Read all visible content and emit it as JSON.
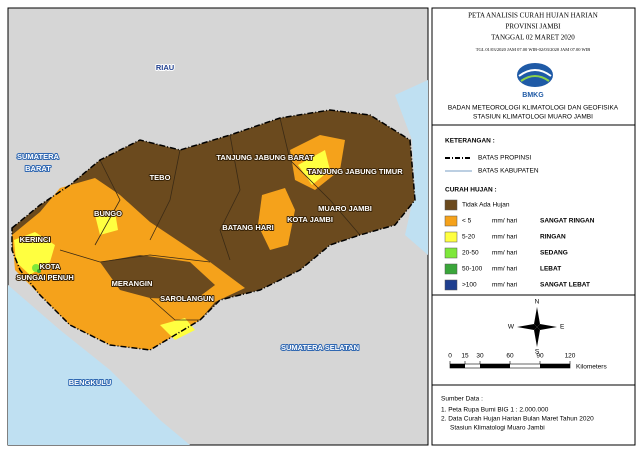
{
  "map": {
    "title": [
      "PETA ANALISIS CURAH HUJAN HARIAN",
      "PROVINSI JAMBI",
      "TANGGAL 02 MARET 2020",
      "TGL 01/03/2020 JAM 07.00 WIB-02/03/2020 JAM 07.00 WIB"
    ],
    "agency": "BMKG",
    "agency_lines": [
      "BADAN METEOROLOGI KLIMATOLOGI DAN GEOFISIKA",
      "STASIUN KLIMATOLOGI MUARO JAMBI"
    ],
    "legend": {
      "heading": "KETERANGAN :",
      "boundaries": [
        "BATAS PROPINSI",
        "BATAS KABUPATEN"
      ],
      "rain_heading": "CURAH HUJAN :",
      "classes": [
        {
          "range": "Tidak Ada Hujan",
          "color": "#6b4a1e"
        },
        {
          "range": "< 5",
          "unit": "mm/ hari",
          "category": "SANGAT RINGAN",
          "color": "#f5a21b"
        },
        {
          "range": "5-20",
          "unit": "mm/ hari",
          "category": "RINGAN",
          "color": "#ffff40"
        },
        {
          "range": "20-50",
          "unit": "mm/ hari",
          "category": "SEDANG",
          "color": "#7ee83a"
        },
        {
          "range": "50-100",
          "unit": "mm/ hari",
          "category": "LEBAT",
          "color": "#3aa63a"
        },
        {
          "range": ">100",
          "unit": "mm/ hari",
          "category": "SANGAT LEBAT",
          "color": "#1f3f8f"
        }
      ]
    },
    "compass": [
      "N",
      "S",
      "E",
      "W"
    ],
    "scale": {
      "ticks": [
        0,
        15,
        30,
        60,
        90,
        120
      ],
      "unit": "Kilometers"
    },
    "source": [
      "Sumber Data :",
      "1. Peta Rupa Bumi BIG 1 : 2.000.000",
      "2. Data Curah Hujan Harian Bulan Maret Tahun 2020",
      "Stasiun Klimatologi Muaro Jambi"
    ],
    "labels": [
      "RIAU",
      "SUMATERA",
      "BARAT",
      "SUMATERA SELATAN",
      "BENGKULU",
      "TEBO",
      "TANJUNG JABUNG BARAT",
      "TANJUNG JABUNG TIMUR",
      "BUNGO",
      "KERINCI",
      "KOTA",
      "SUNGAI PENUH",
      "MUARO JAMBI",
      "KOTA JAMBI",
      "BATANG HARI",
      "MERANGIN",
      "SAROLANGUN"
    ]
  }
}
